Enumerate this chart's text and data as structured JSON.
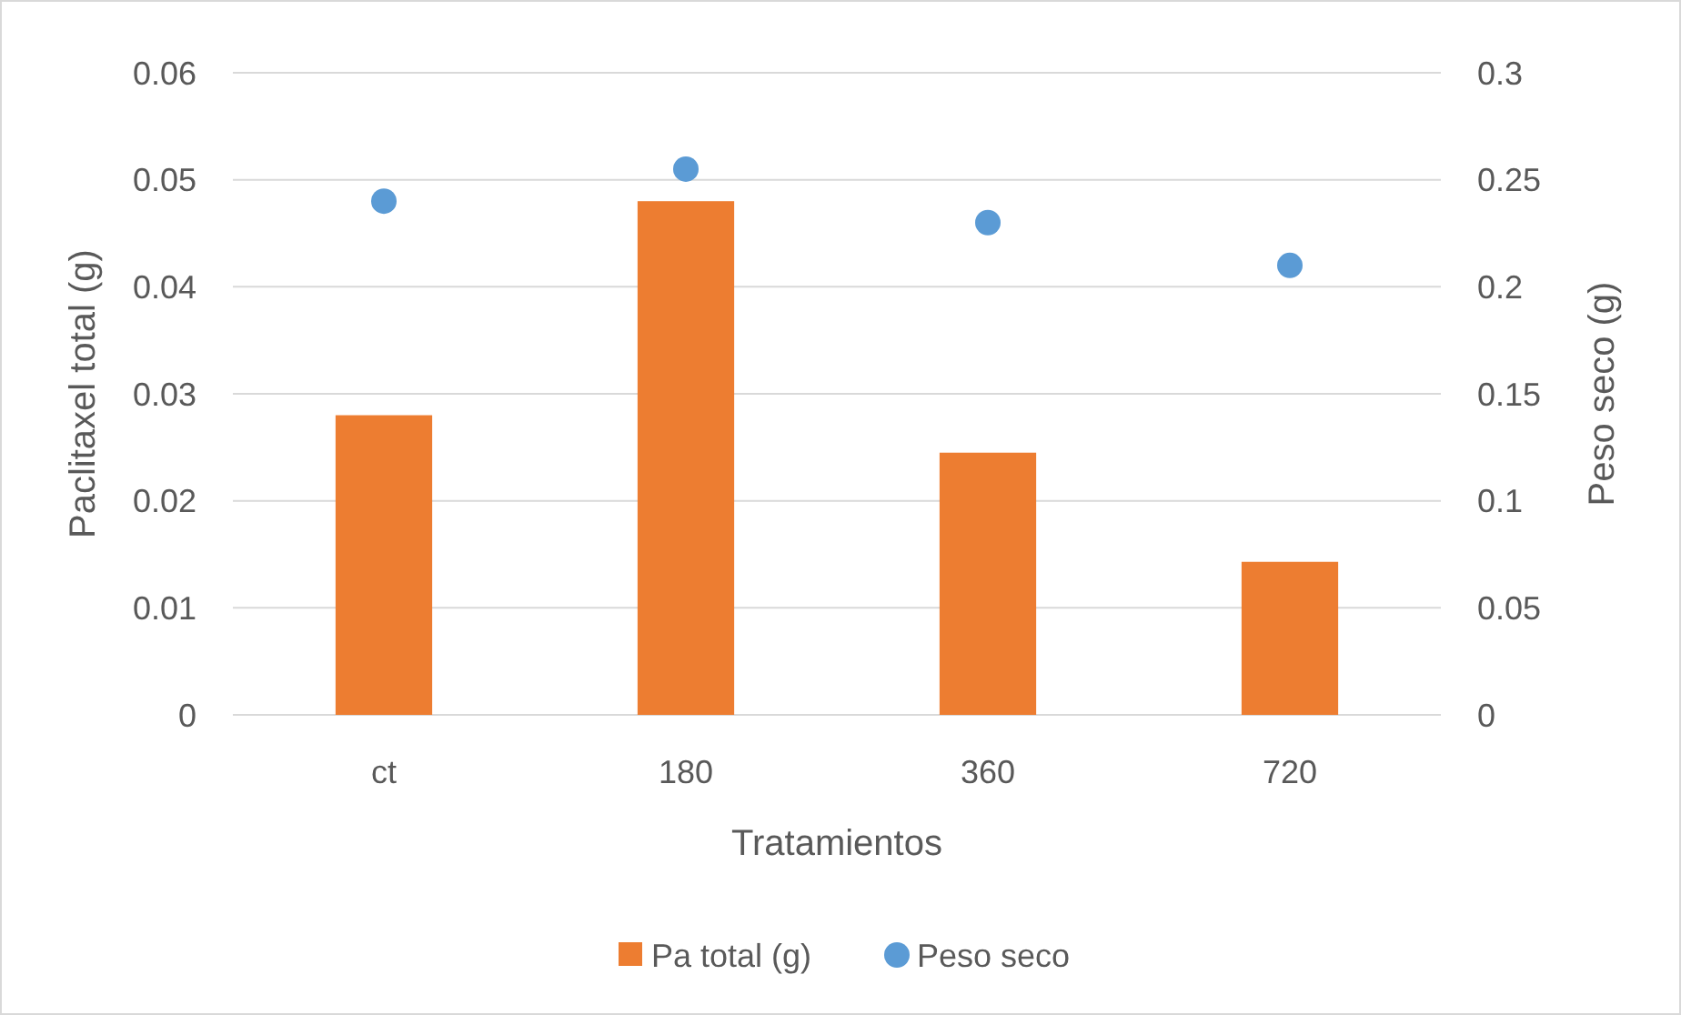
{
  "chart_data": {
    "type": "bar",
    "xlabel": "Tratamientos",
    "ylabel": "Paclitaxel total (g)",
    "y2label": "Peso seco (g)",
    "categories": [
      "ct",
      "180",
      "360",
      "720"
    ],
    "series": [
      {
        "name": "Pa total (g)",
        "color": "#ed7d31",
        "values": [
          0.028,
          0.048,
          0.0245,
          0.0143
        ]
      },
      {
        "name": "Peso seco",
        "type": "scatter",
        "axis": "y2",
        "color": "#5b9bd5",
        "marker": "circle",
        "values": [
          0.24,
          0.255,
          0.23,
          0.21
        ]
      }
    ],
    "ylim": [
      0,
      0.06
    ],
    "yticks": [
      0,
      0.01,
      0.02,
      0.03,
      0.04,
      0.05,
      0.06
    ],
    "y2lim": [
      0,
      0.3
    ],
    "y2ticks": [
      0,
      0.05,
      0.1,
      0.15,
      0.2,
      0.25,
      0.3
    ],
    "grid": "y",
    "legend": "bottom"
  }
}
